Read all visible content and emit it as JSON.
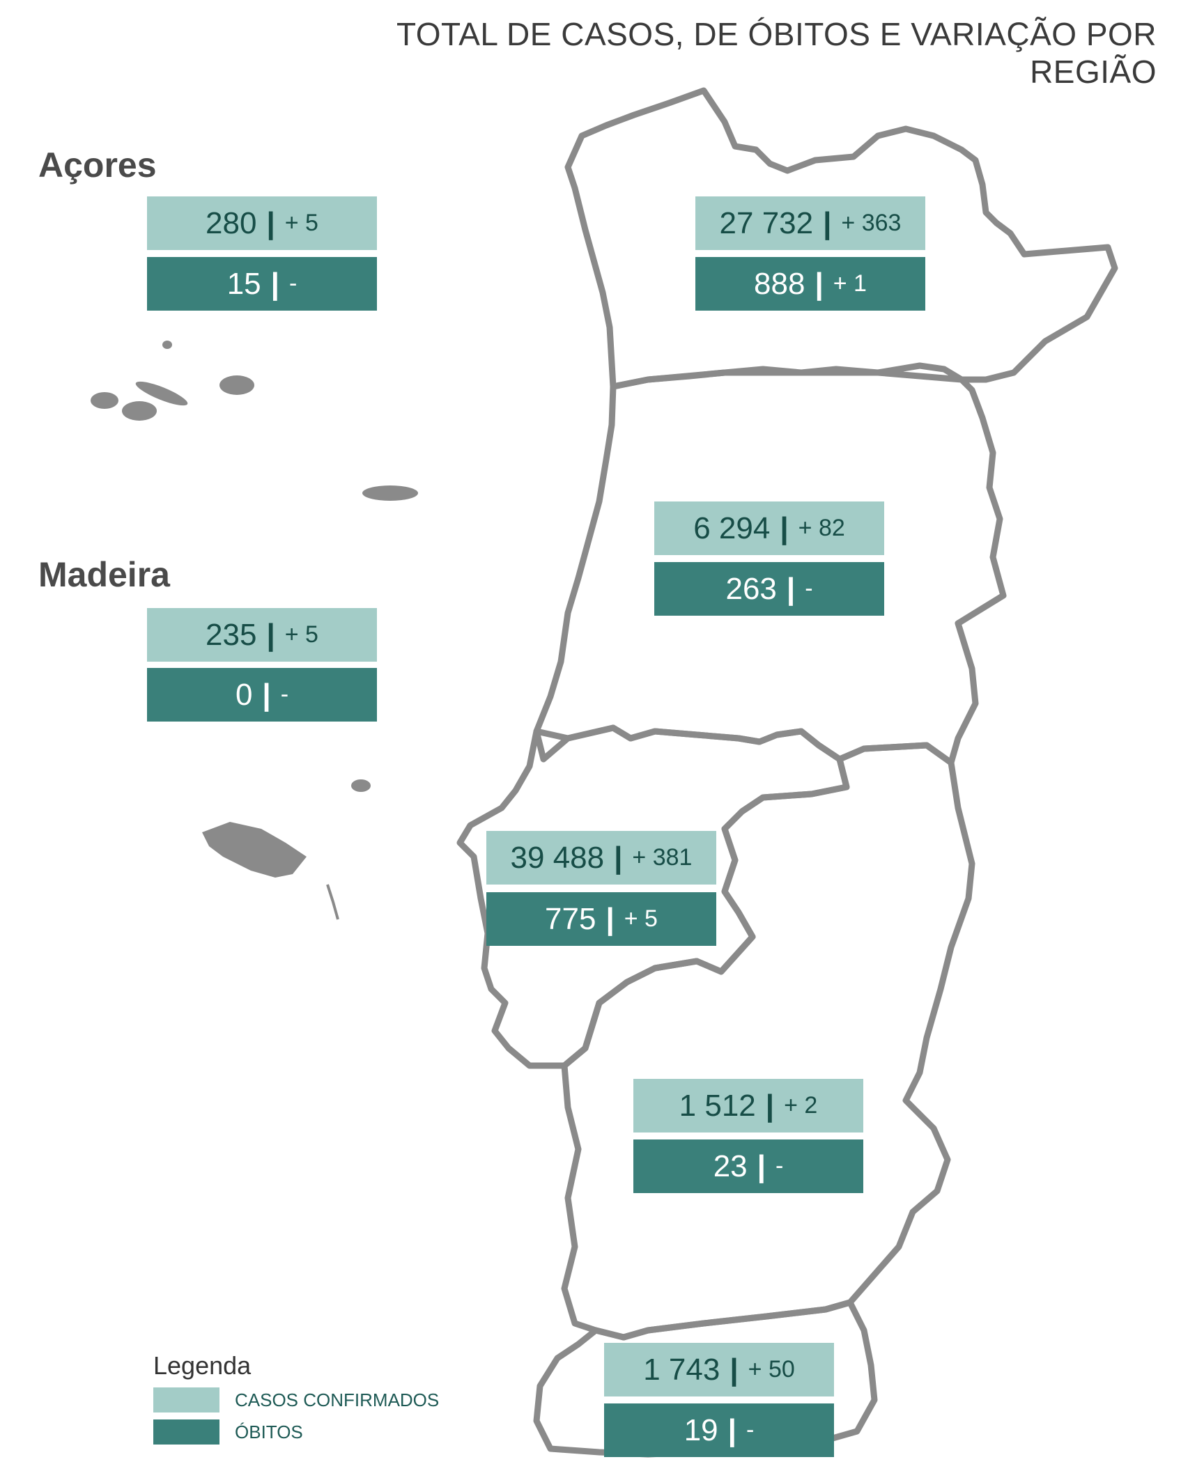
{
  "title": "TOTAL DE CASOS, DE ÓBITOS  E VARIAÇÃO POR REGIÃO",
  "colors": {
    "cases_fill": "#a3ccc7",
    "deaths_fill": "#3a807a",
    "map_outline": "#8a8a8a",
    "title_text": "#3a3a3a"
  },
  "islands": {
    "acores_label": "Açores",
    "madeira_label": "Madeira"
  },
  "regions": [
    {
      "id": "acores",
      "cases": "280",
      "cases_var": "+ 5",
      "deaths": "15",
      "deaths_var": "-"
    },
    {
      "id": "norte",
      "cases": "27 732",
      "cases_var": "+ 363",
      "deaths": "888",
      "deaths_var": "+ 1"
    },
    {
      "id": "centro",
      "cases": "6 294",
      "cases_var": "+ 82",
      "deaths": "263",
      "deaths_var": "-"
    },
    {
      "id": "madeira",
      "cases": "235",
      "cases_var": "+ 5",
      "deaths": "0",
      "deaths_var": "-"
    },
    {
      "id": "lisboa-vale-tejo",
      "cases": "39 488",
      "cases_var": "+ 381",
      "deaths": "775",
      "deaths_var": "+ 5"
    },
    {
      "id": "alentejo",
      "cases": "1 512",
      "cases_var": "+ 2",
      "deaths": "23",
      "deaths_var": "-"
    },
    {
      "id": "algarve",
      "cases": "1 743",
      "cases_var": "+ 50",
      "deaths": "19",
      "deaths_var": "-"
    }
  ],
  "legend": {
    "title": "Legenda",
    "cases_label": "CASOS CONFIRMADOS",
    "deaths_label": "ÓBITOS"
  }
}
